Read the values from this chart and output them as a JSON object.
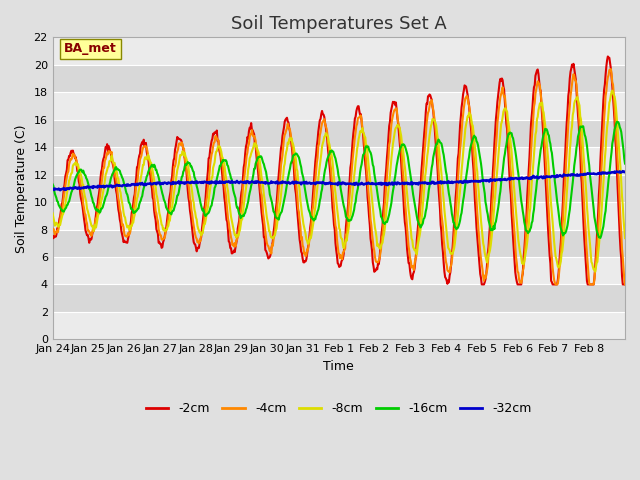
{
  "title": "Soil Temperatures Set A",
  "xlabel": "Time",
  "ylabel": "Soil Temperature (C)",
  "ylim": [
    0,
    22
  ],
  "yticks": [
    0,
    2,
    4,
    6,
    8,
    10,
    12,
    14,
    16,
    18,
    20,
    22
  ],
  "xtick_labels": [
    "Jan 24",
    "Jan 25",
    "Jan 26",
    "Jan 27",
    "Jan 28",
    "Jan 29",
    "Jan 30",
    "Jan 31",
    "Feb 1",
    "Feb 2",
    "Feb 3",
    "Feb 4",
    "Feb 5",
    "Feb 6",
    "Feb 7",
    "Feb 8"
  ],
  "series_colors": [
    "#dd0000",
    "#ff8800",
    "#dddd00",
    "#00cc00",
    "#0000cc"
  ],
  "series_labels": [
    "-2cm",
    "-4cm",
    "-8cm",
    "-16cm",
    "-32cm"
  ],
  "series_lw": [
    1.5,
    1.5,
    1.5,
    1.5,
    1.8
  ],
  "legend_label": "BA_met",
  "legend_text_color": "#880000",
  "legend_box_facecolor": "#ffff99",
  "legend_box_edgecolor": "#888800",
  "fig_bg_color": "#e0e0e0",
  "plot_bg_color": "#f0f0f0",
  "band_colors": [
    "#ebebeb",
    "#d8d8d8"
  ],
  "grid_color": "#ffffff",
  "title_fontsize": 13,
  "axis_fontsize": 8,
  "label_fontsize": 9
}
